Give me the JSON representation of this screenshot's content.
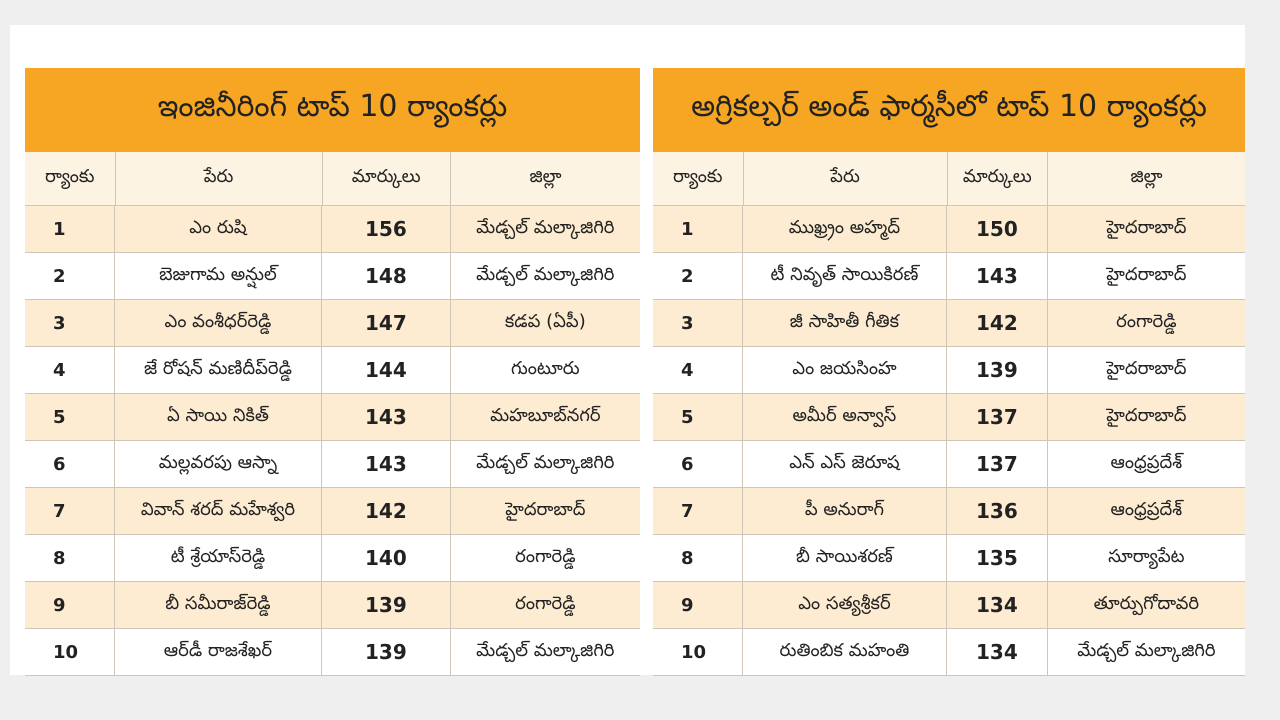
{
  "tables": [
    {
      "title": "ఇంజినీరింగ్ టాప్ 10 ర్యాంకర్లు",
      "headers": [
        "ర్యాంకు",
        "పేరు",
        "మార్కులు",
        "జిల్లా"
      ],
      "rows": [
        [
          1,
          "ఎం రుషి",
          156,
          "మేడ్చల్ మల్కాజిగిరి"
        ],
        [
          2,
          "బెజుగామ అన్షుల్",
          148,
          "మేడ్చల్ మల్కాజిగిరి"
        ],
        [
          3,
          "ఎం వంశీధర్‌రెడ్డి",
          147,
          "కడప (ఏపీ)"
        ],
        [
          4,
          "జే రోషన్ మణిదీప్‌రెడ్డి",
          144,
          "గుంటూరు"
        ],
        [
          5,
          "ఏ సాయి నికిత్",
          143,
          "మహబూబ్‌నగర్"
        ],
        [
          6,
          "మల్లవరపు ఆస్నా",
          143,
          "మేడ్చల్ మల్కాజిగిరి"
        ],
        [
          7,
          "వివాన్ శరద్ మహేశ్వరి",
          142,
          "హైదరాబాద్"
        ],
        [
          8,
          "టీ శ్రేయాస్‌రెడ్డి",
          140,
          "రంగారెడ్డి"
        ],
        [
          9,
          "బీ సమీరాజ్‌రెడ్డి",
          139,
          "రంగారెడ్డి"
        ],
        [
          10,
          "ఆర్‌డీ రాజశేఖర్",
          139,
          "మేడ్చల్ మల్కాజిగిరి"
        ]
      ]
    },
    {
      "title": "అగ్రికల్చర్ అండ్ ఫార్మసీలో టాప్ 10 ర్యాంకర్లు",
      "headers": [
        "ర్యాంకు",
        "పేరు",
        "మార్కులు",
        "జిల్లా"
      ],
      "rows": [
        [
          1,
          "ముఖ్ర్రం అహ్మద్",
          150,
          "హైదరాబాద్"
        ],
        [
          2,
          "టీ నివృత్ సాయికిరణ్",
          143,
          "హైదరాబాద్"
        ],
        [
          3,
          "జీ సాహితీ గీతిక",
          142,
          "రంగారెడ్డి"
        ],
        [
          4,
          "ఎం జయసింహ",
          139,
          "హైదరాబాద్"
        ],
        [
          5,
          "అమీర్ అన్వాస్",
          137,
          "హైదరాబాద్"
        ],
        [
          6,
          "ఎన్ ఎస్ జెరూష",
          137,
          "ఆంధ్రప్రదేశ్"
        ],
        [
          7,
          "పీ అనురాగ్",
          136,
          "ఆంధ్రప్రదేశ్"
        ],
        [
          8,
          "బీ సాయిశరణ్",
          135,
          "సూర్యాపేట"
        ],
        [
          9,
          "ఎం సత్యశ్రీకర్",
          134,
          "తూర్పుగోదావరి"
        ],
        [
          10,
          "రుతింబిక మహంతి",
          134,
          "మేడ్చల్ మల్కాజిగిరి"
        ]
      ]
    }
  ]
}
